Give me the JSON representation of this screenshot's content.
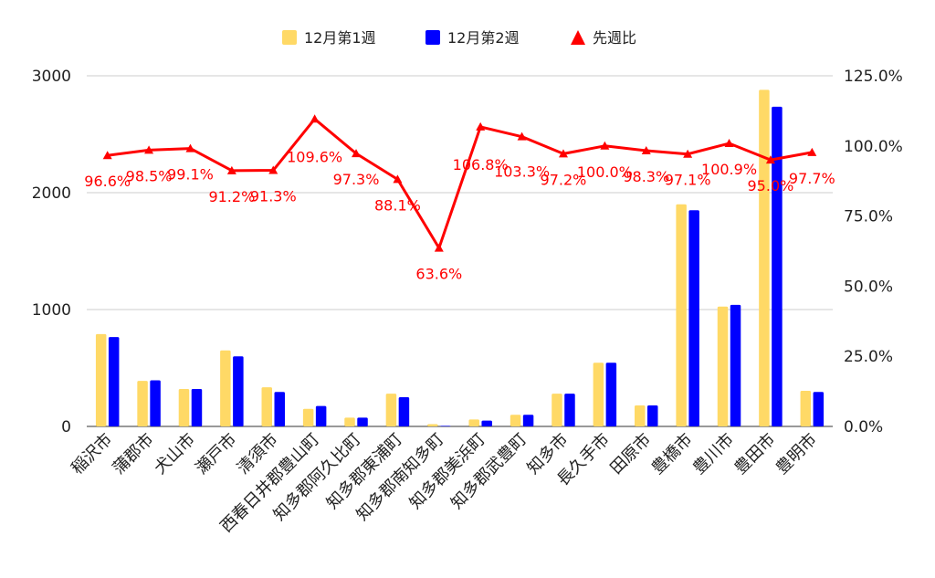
{
  "chart_data": {
    "type": "bar",
    "categories": [
      "稲沢市",
      "蒲郡市",
      "犬山市",
      "瀬戸市",
      "清須市",
      "西春日井郡豊山町",
      "知多郡阿久比町",
      "知多郡東浦町",
      "知多郡南知多町",
      "知多郡美浜町",
      "知多郡武豊町",
      "知多市",
      "長久手市",
      "田原市",
      "豊橋市",
      "豊川市",
      "豊田市",
      "豊明市"
    ],
    "series": [
      {
        "name": "12月第1週",
        "type": "bar",
        "axis": "left",
        "color": "#ffd966",
        "values": [
          790,
          390,
          320,
          650,
          335,
          150,
          75,
          280,
          20,
          60,
          100,
          280,
          545,
          180,
          1900,
          1025,
          2880,
          305
        ]
      },
      {
        "name": "12月第2週",
        "type": "bar",
        "axis": "left",
        "color": "#0000ff",
        "values": [
          765,
          395,
          320,
          600,
          295,
          175,
          75,
          250,
          5,
          50,
          100,
          280,
          545,
          180,
          1850,
          1040,
          2735,
          295
        ]
      },
      {
        "name": "先週比",
        "type": "line",
        "axis": "right",
        "color": "#ff0000",
        "values": [
          96.6,
          98.5,
          99.1,
          91.2,
          91.3,
          109.6,
          97.3,
          88.1,
          63.6,
          106.8,
          103.3,
          97.2,
          100.0,
          98.3,
          97.1,
          100.9,
          95.0,
          97.7
        ],
        "labels": [
          "96.6%",
          "98.5%",
          "99.1%",
          "91.2%",
          "91.3%",
          "109.6%",
          "97.3%",
          "88.1%",
          "63.6%",
          "106.8%",
          "103.3%",
          "97.2%",
          "100.0%",
          "98.3%",
          "97.1%",
          "100.9%",
          "95.0%",
          "97.7%"
        ]
      }
    ],
    "y_left": {
      "min": 0,
      "max": 3000,
      "ticks": [
        "0",
        "1000",
        "2000",
        "3000"
      ],
      "tick_values": [
        0,
        1000,
        2000,
        3000
      ]
    },
    "y_right": {
      "min": 0,
      "max": 125,
      "ticks": [
        "0.0%",
        "25.0%",
        "50.0%",
        "75.0%",
        "100.0%",
        "125.0%"
      ],
      "tick_values": [
        0,
        25,
        50,
        75,
        100,
        125
      ]
    },
    "legend": {
      "position": "top",
      "items": [
        "12月第1週",
        "12月第2週",
        "先週比"
      ]
    },
    "grid": true,
    "title": "",
    "xlabel": "",
    "ylabel": ""
  }
}
